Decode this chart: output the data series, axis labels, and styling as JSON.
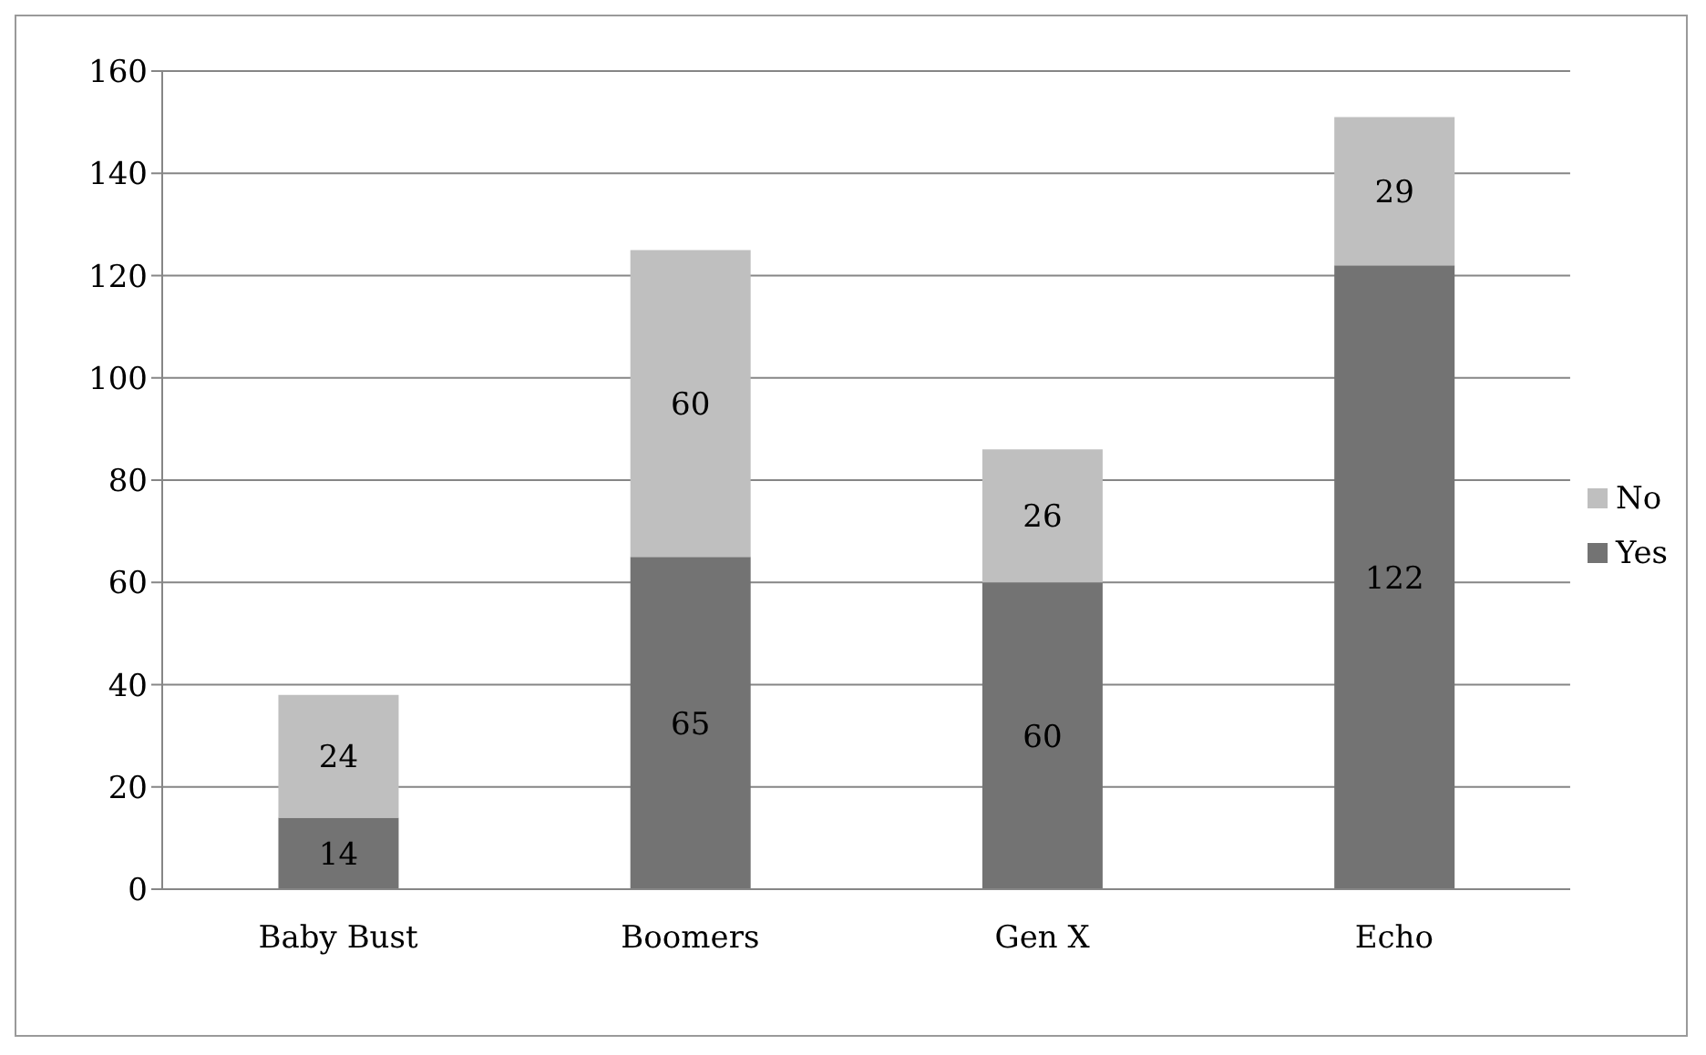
{
  "chart_data": {
    "type": "bar",
    "stacked": true,
    "categories": [
      "Baby Bust",
      "Boomers",
      "Gen X",
      "Echo"
    ],
    "series": [
      {
        "name": "Yes",
        "color": "#737373",
        "values": [
          14,
          65,
          60,
          122
        ]
      },
      {
        "name": "No",
        "color": "#bfbfbf",
        "values": [
          24,
          60,
          26,
          29
        ]
      }
    ],
    "ylim": [
      0,
      160
    ],
    "yticks": [
      0,
      20,
      40,
      60,
      80,
      100,
      120,
      140,
      160
    ],
    "grid": "y",
    "legend": "right",
    "data_labels": true
  }
}
